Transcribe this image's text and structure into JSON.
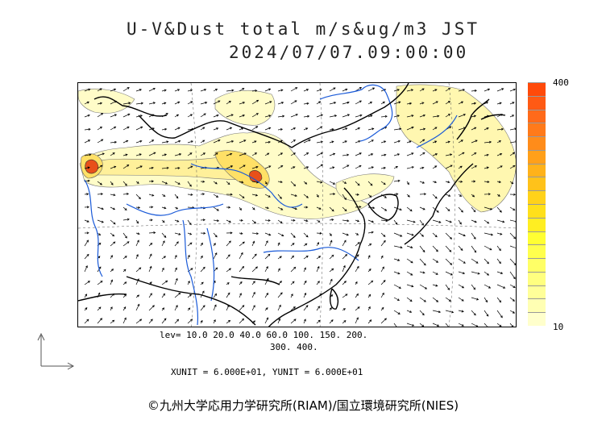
{
  "header": {
    "title": "U-V&Dust total m/s&ug/m3 JST",
    "datetime": "2024/07/07.09:00:00"
  },
  "colorbar": {
    "max_label": "400",
    "min_label": "10",
    "colors": [
      "#ffffcc",
      "#ffffb3",
      "#ffff99",
      "#ffff80",
      "#ffff66",
      "#ffff4d",
      "#ffff33",
      "#ffee22",
      "#ffe01a",
      "#ffd21a",
      "#ffc21a",
      "#ffb21a",
      "#ffa01a",
      "#ff8c1a",
      "#ff7a1a",
      "#ff6a1a",
      "#ff5a14",
      "#ff4a0a"
    ]
  },
  "levels": {
    "line1": "lev= 10.0 20.0 40.0 60.0 100. 150. 200.",
    "line2": "300. 400."
  },
  "units_text": "XUNIT = 6.000E+01, YUNIT = 6.000E+01",
  "credit": "©九州大学応用力学研究所(RIAM)/国立環境研究所(NIES)",
  "map_colors": {
    "coast": "#000000",
    "river": "#1a5ad8",
    "dust_light": "#fffcc8",
    "dust_mid": "#fff4a0",
    "dust_high": "#f5a01e",
    "dust_peak": "#e8501a"
  }
}
